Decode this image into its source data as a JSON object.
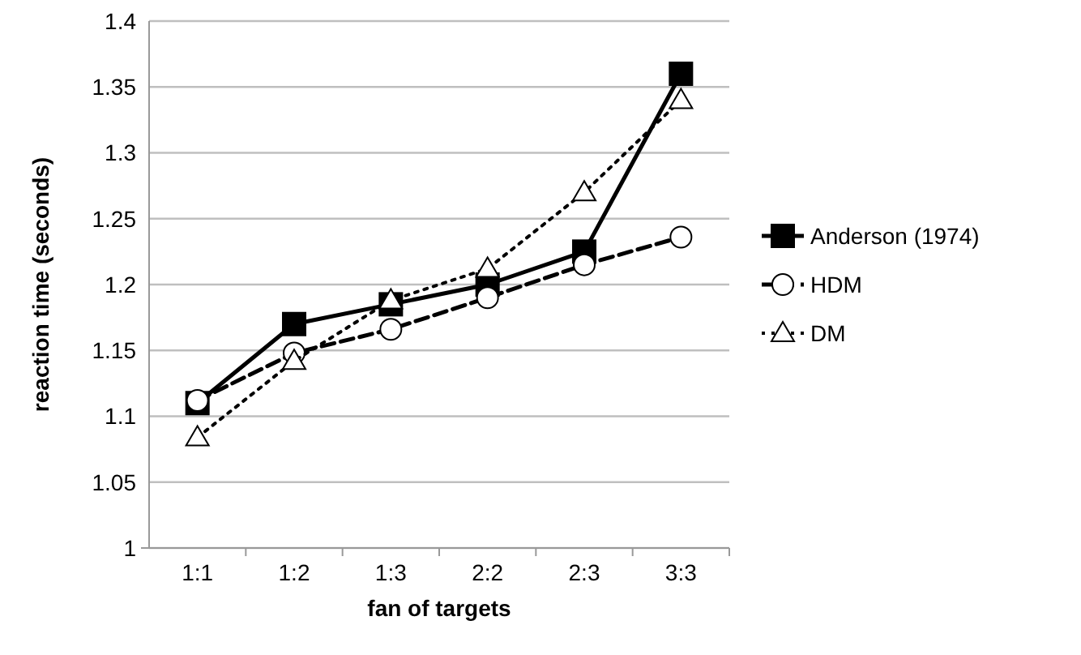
{
  "chart_data": {
    "type": "line",
    "xlabel": "fan of targets",
    "ylabel": "reaction time (seconds)",
    "categories": [
      "1:1",
      "1:2",
      "1:3",
      "2:2",
      "2:3",
      "3:3"
    ],
    "ylim": [
      1,
      1.4
    ],
    "yticks": [
      1,
      1.05,
      1.1,
      1.15,
      1.2,
      1.25,
      1.3,
      1.35,
      1.4
    ],
    "grid": "y",
    "legend": "right",
    "series": [
      {
        "name": "Anderson (1974)",
        "color": "#000000",
        "marker": "square",
        "line_style": "solid",
        "values": [
          1.11,
          1.17,
          1.185,
          1.2,
          1.225,
          1.36
        ]
      },
      {
        "name": "HDM",
        "color": "#000000",
        "marker": "circle",
        "line_style": "dashed",
        "values": [
          1.112,
          1.148,
          1.166,
          1.19,
          1.215,
          1.236
        ]
      },
      {
        "name": "DM",
        "color": "#000000",
        "marker": "triangle",
        "line_style": "dotted",
        "values": [
          1.084,
          1.142,
          1.188,
          1.212,
          1.27,
          1.34
        ]
      }
    ]
  }
}
